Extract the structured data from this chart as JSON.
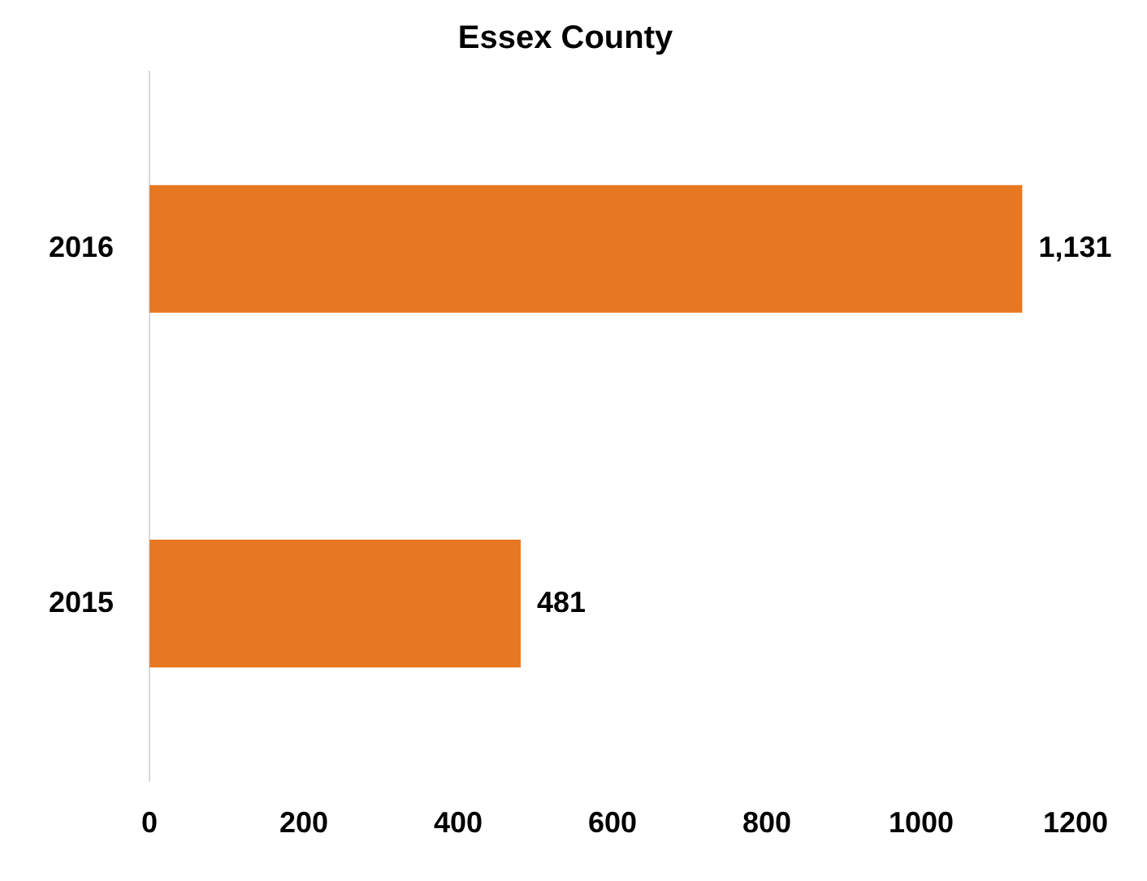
{
  "chart_data": {
    "type": "bar",
    "orientation": "horizontal",
    "title": "Essex County",
    "categories": [
      "2016",
      "2015"
    ],
    "values": [
      1131,
      481
    ],
    "value_labels": [
      "1,131",
      "481"
    ],
    "color": "#e87722",
    "xlim": [
      0,
      1200
    ],
    "xticks": [
      0,
      200,
      400,
      600,
      800,
      1000,
      1200
    ],
    "grid": false,
    "legend": false
  }
}
